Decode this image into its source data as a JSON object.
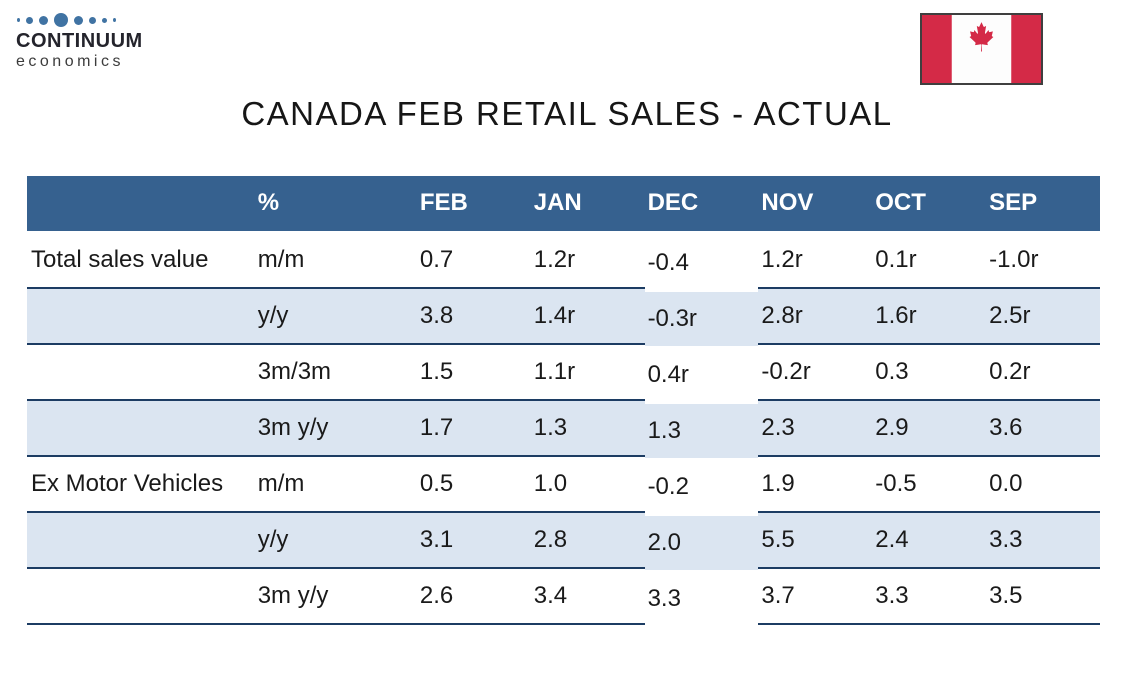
{
  "logo": {
    "name": "CONTINUUM",
    "tagline": "economics"
  },
  "icons": {
    "logo_dots_icon": "dots-row-icon",
    "flag_icon": "canada-flag-icon"
  },
  "title": "CANADA FEB RETAIL SALES - ACTUAL",
  "table": {
    "columns": [
      "",
      "%",
      "FEB",
      "JAN",
      "DEC",
      "NOV",
      "OCT",
      "SEP"
    ],
    "rows": [
      {
        "label": "Total sales value",
        "measure": "m/m",
        "values": [
          "0.7",
          "1.2r",
          "-0.4",
          "1.2r",
          "0.1r",
          "-1.0r"
        ]
      },
      {
        "label": "",
        "measure": "y/y",
        "values": [
          "3.8",
          "1.4r",
          "-0.3r",
          "2.8r",
          "1.6r",
          "2.5r"
        ]
      },
      {
        "label": "",
        "measure": "3m/3m",
        "values": [
          "1.5",
          "1.1r",
          "0.4r",
          "-0.2r",
          "0.3",
          "0.2r"
        ]
      },
      {
        "label": "",
        "measure": "3m y/y",
        "values": [
          "1.7",
          "1.3",
          "1.3",
          "2.3",
          "2.9",
          "3.6"
        ]
      },
      {
        "label": "Ex Motor Vehicles",
        "measure": "m/m",
        "values": [
          "0.5",
          "1.0",
          "-0.2",
          "1.9",
          "-0.5",
          "0.0"
        ]
      },
      {
        "label": "",
        "measure": "y/y",
        "values": [
          "3.1",
          "2.8",
          "2.0",
          "5.5",
          "2.4",
          "3.3"
        ]
      },
      {
        "label": "",
        "measure": "3m y/y",
        "values": [
          "2.6",
          "3.4",
          "3.3",
          "3.7",
          "3.3",
          "3.5"
        ]
      }
    ]
  },
  "colors": {
    "header_blue": "#36618F",
    "row_alt": "#DBE5F1",
    "border_navy": "#1C3C63",
    "flag_red": "#D42A47",
    "logo_dot_blue": "#4073A3",
    "text_dark": "#1A1A1A"
  }
}
